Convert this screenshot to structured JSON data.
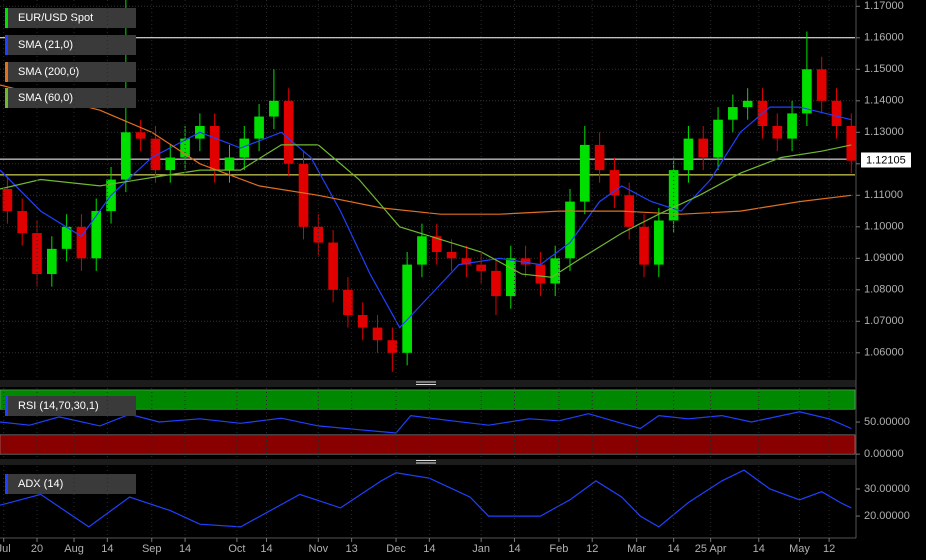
{
  "chart_data": [
    {
      "type": "candlestick",
      "xlim": [
        0,
        231
      ],
      "ylim": [
        1.052,
        1.172
      ],
      "yticks": [
        {
          "value": 1.06,
          "label": "1.06000"
        },
        {
          "value": 1.07,
          "label": "1.07000"
        },
        {
          "value": 1.08,
          "label": "1.08000"
        },
        {
          "value": 1.09,
          "label": "1.09000"
        },
        {
          "value": 1.1,
          "label": "1.10000"
        },
        {
          "value": 1.11,
          "label": "1.11000"
        },
        {
          "value": 1.12,
          "label": "1.12000"
        },
        {
          "value": 1.13,
          "label": "1.13000"
        },
        {
          "value": 1.14,
          "label": "1.14000"
        },
        {
          "value": 1.15,
          "label": "1.15000"
        },
        {
          "value": 1.16,
          "label": "1.16000"
        },
        {
          "value": 1.17,
          "label": "1.17000"
        }
      ],
      "grid": true,
      "hlines": [
        {
          "value": 1.16,
          "color": "#ffffff"
        },
        {
          "value": 1.1215,
          "color": "#ffffff"
        },
        {
          "value": 1.1165,
          "color": "#ffff66"
        }
      ],
      "last_price": {
        "value": 1.12105,
        "label": "1.12105"
      },
      "series": [
        {
          "name": "EUR/USD Spot",
          "color": "#00e000",
          "down_color": "#e00000",
          "x": [
            2,
            6,
            10,
            14,
            18,
            22,
            26,
            30,
            34,
            38,
            42,
            46,
            50,
            54,
            58,
            62,
            66,
            70,
            74,
            78,
            82,
            86,
            90,
            94,
            98,
            102,
            106,
            110,
            114,
            118,
            122,
            126,
            130,
            134,
            138,
            142,
            146,
            150,
            154,
            158,
            162,
            166,
            170,
            174,
            178,
            182,
            186,
            190,
            194,
            198,
            202,
            206,
            210,
            214,
            218,
            222,
            226,
            230
          ],
          "open": [
            1.112,
            1.105,
            1.098,
            1.085,
            1.093,
            1.1,
            1.09,
            1.105,
            1.115,
            1.13,
            1.128,
            1.118,
            1.122,
            1.128,
            1.132,
            1.118,
            1.122,
            1.128,
            1.135,
            1.14,
            1.12,
            1.1,
            1.095,
            1.08,
            1.072,
            1.068,
            1.064,
            1.06,
            1.088,
            1.097,
            1.092,
            1.09,
            1.088,
            1.086,
            1.078,
            1.09,
            1.088,
            1.082,
            1.09,
            1.108,
            1.126,
            1.118,
            1.11,
            1.1,
            1.088,
            1.102,
            1.118,
            1.128,
            1.122,
            1.134,
            1.138,
            1.14,
            1.132,
            1.128,
            1.136,
            1.15,
            1.14,
            1.132
          ],
          "high": [
            1.116,
            1.109,
            1.102,
            1.097,
            1.104,
            1.104,
            1.109,
            1.119,
            1.172,
            1.134,
            1.132,
            1.126,
            1.132,
            1.136,
            1.136,
            1.126,
            1.132,
            1.139,
            1.15,
            1.144,
            1.124,
            1.104,
            1.099,
            1.084,
            1.076,
            1.072,
            1.068,
            1.092,
            1.101,
            1.101,
            1.096,
            1.094,
            1.092,
            1.09,
            1.094,
            1.094,
            1.092,
            1.094,
            1.112,
            1.132,
            1.13,
            1.122,
            1.114,
            1.104,
            1.106,
            1.122,
            1.132,
            1.132,
            1.138,
            1.142,
            1.144,
            1.144,
            1.136,
            1.14,
            1.162,
            1.154,
            1.144,
            1.136
          ],
          "low": [
            1.101,
            1.094,
            1.081,
            1.081,
            1.089,
            1.086,
            1.086,
            1.101,
            1.111,
            1.124,
            1.114,
            1.114,
            1.118,
            1.124,
            1.114,
            1.114,
            1.118,
            1.124,
            1.131,
            1.116,
            1.096,
            1.091,
            1.076,
            1.068,
            1.064,
            1.06,
            1.054,
            1.056,
            1.084,
            1.088,
            1.086,
            1.084,
            1.082,
            1.072,
            1.074,
            1.084,
            1.078,
            1.078,
            1.086,
            1.104,
            1.114,
            1.106,
            1.096,
            1.084,
            1.084,
            1.098,
            1.114,
            1.118,
            1.118,
            1.13,
            1.134,
            1.128,
            1.124,
            1.124,
            1.132,
            1.136,
            1.128,
            1.117
          ],
          "close": [
            1.105,
            1.098,
            1.085,
            1.093,
            1.1,
            1.09,
            1.105,
            1.115,
            1.13,
            1.128,
            1.118,
            1.122,
            1.128,
            1.132,
            1.118,
            1.122,
            1.128,
            1.135,
            1.14,
            1.12,
            1.1,
            1.095,
            1.08,
            1.072,
            1.068,
            1.064,
            1.06,
            1.088,
            1.097,
            1.092,
            1.09,
            1.088,
            1.086,
            1.078,
            1.09,
            1.088,
            1.082,
            1.09,
            1.108,
            1.126,
            1.118,
            1.11,
            1.1,
            1.088,
            1.102,
            1.118,
            1.128,
            1.122,
            1.134,
            1.138,
            1.14,
            1.132,
            1.128,
            1.136,
            1.15,
            1.14,
            1.132,
            1.121
          ]
        },
        {
          "name": "SMA (21,0)",
          "color": "#2040ff",
          "x": [
            0,
            11,
            22,
            30,
            41,
            54,
            65,
            76,
            84,
            92,
            100,
            108,
            116,
            124,
            135,
            146,
            154,
            162,
            168,
            176,
            184,
            192,
            200,
            208,
            216,
            230
          ],
          "values": [
            1.118,
            1.105,
            1.097,
            1.11,
            1.122,
            1.13,
            1.125,
            1.13,
            1.122,
            1.105,
            1.085,
            1.068,
            1.078,
            1.088,
            1.09,
            1.088,
            1.095,
            1.108,
            1.113,
            1.108,
            1.105,
            1.115,
            1.13,
            1.138,
            1.138,
            1.134
          ]
        },
        {
          "name": "SMA (200,0)",
          "color": "#e07020",
          "x": [
            0,
            27,
            41,
            54,
            70,
            86,
            103,
            119,
            135,
            151,
            168,
            184,
            200,
            216,
            230
          ],
          "values": [
            1.145,
            1.137,
            1.13,
            1.12,
            1.113,
            1.11,
            1.106,
            1.104,
            1.104,
            1.105,
            1.105,
            1.104,
            1.105,
            1.108,
            1.11
          ]
        },
        {
          "name": "SMA (60,0)",
          "color": "#70b830",
          "x": [
            0,
            11,
            27,
            43,
            54,
            65,
            76,
            86,
            97,
            108,
            119,
            130,
            141,
            149,
            157,
            168,
            178,
            189,
            200,
            211,
            222,
            230
          ],
          "values": [
            1.112,
            1.115,
            1.113,
            1.116,
            1.118,
            1.118,
            1.126,
            1.126,
            1.115,
            1.1,
            1.096,
            1.092,
            1.085,
            1.084,
            1.09,
            1.098,
            1.104,
            1.11,
            1.117,
            1.122,
            1.124,
            1.126
          ]
        }
      ]
    },
    {
      "type": "line",
      "xlim": [
        0,
        231
      ],
      "ylim": [
        -6,
        103
      ],
      "yticks": [
        {
          "value": 0,
          "label": "0.00000"
        },
        {
          "value": 50,
          "label": "50.00000"
        }
      ],
      "bands": [
        {
          "from": 70,
          "to": 100,
          "color": "#008800"
        },
        {
          "from": 0,
          "to": 30,
          "color": "#880000"
        }
      ],
      "series": [
        {
          "name": "RSI (14,70,30,1)",
          "color": "#2040ff",
          "x": [
            0,
            8,
            16,
            27,
            35,
            43,
            54,
            65,
            76,
            86,
            97,
            107,
            111,
            122,
            132,
            143,
            151,
            159,
            168,
            173,
            178,
            186,
            195,
            203,
            216,
            224,
            230
          ],
          "values": [
            50,
            45,
            58,
            44,
            62,
            50,
            55,
            48,
            56,
            44,
            38,
            33,
            60,
            52,
            45,
            55,
            52,
            63,
            48,
            40,
            60,
            55,
            60,
            50,
            66,
            55,
            40
          ]
        }
      ]
    },
    {
      "type": "line",
      "xlim": [
        0,
        231
      ],
      "ylim": [
        13,
        38.5
      ],
      "yticks": [
        {
          "value": 20,
          "label": "20.00000"
        },
        {
          "value": 30,
          "label": "30.00000"
        }
      ],
      "xticks": [
        {
          "value": 1,
          "label": "Jul"
        },
        {
          "value": 10,
          "label": "20"
        },
        {
          "value": 20,
          "label": "Aug"
        },
        {
          "value": 29,
          "label": "14"
        },
        {
          "value": 41,
          "label": "Sep"
        },
        {
          "value": 50,
          "label": "14"
        },
        {
          "value": 64,
          "label": "Oct"
        },
        {
          "value": 72,
          "label": "14"
        },
        {
          "value": 86,
          "label": "Nov"
        },
        {
          "value": 95,
          "label": "13"
        },
        {
          "value": 107,
          "label": "Dec"
        },
        {
          "value": 116,
          "label": "14"
        },
        {
          "value": 130,
          "label": "Jan"
        },
        {
          "value": 139,
          "label": "14"
        },
        {
          "value": 151,
          "label": "Feb"
        },
        {
          "value": 160,
          "label": "12"
        },
        {
          "value": 172,
          "label": "Mar"
        },
        {
          "value": 182,
          "label": "14"
        },
        {
          "value": 192,
          "label": "25 Apr"
        },
        {
          "value": 205,
          "label": "14"
        },
        {
          "value": 216,
          "label": "May"
        },
        {
          "value": 224,
          "label": "12"
        }
      ],
      "series": [
        {
          "name": "ADX (14)",
          "color": "#2040ff",
          "x": [
            0,
            11,
            24,
            35,
            46,
            54,
            65,
            81,
            92,
            103,
            107,
            116,
            127,
            132,
            146,
            154,
            161,
            168,
            173,
            178,
            186,
            195,
            201,
            208,
            216,
            222,
            227,
            230
          ],
          "values": [
            24,
            28,
            16,
            27,
            22,
            17,
            16,
            28,
            23,
            33,
            36,
            34,
            27,
            20,
            20,
            26,
            33,
            27,
            20,
            16,
            25,
            33,
            37,
            30,
            26,
            29,
            25,
            23
          ]
        }
      ]
    }
  ]
}
